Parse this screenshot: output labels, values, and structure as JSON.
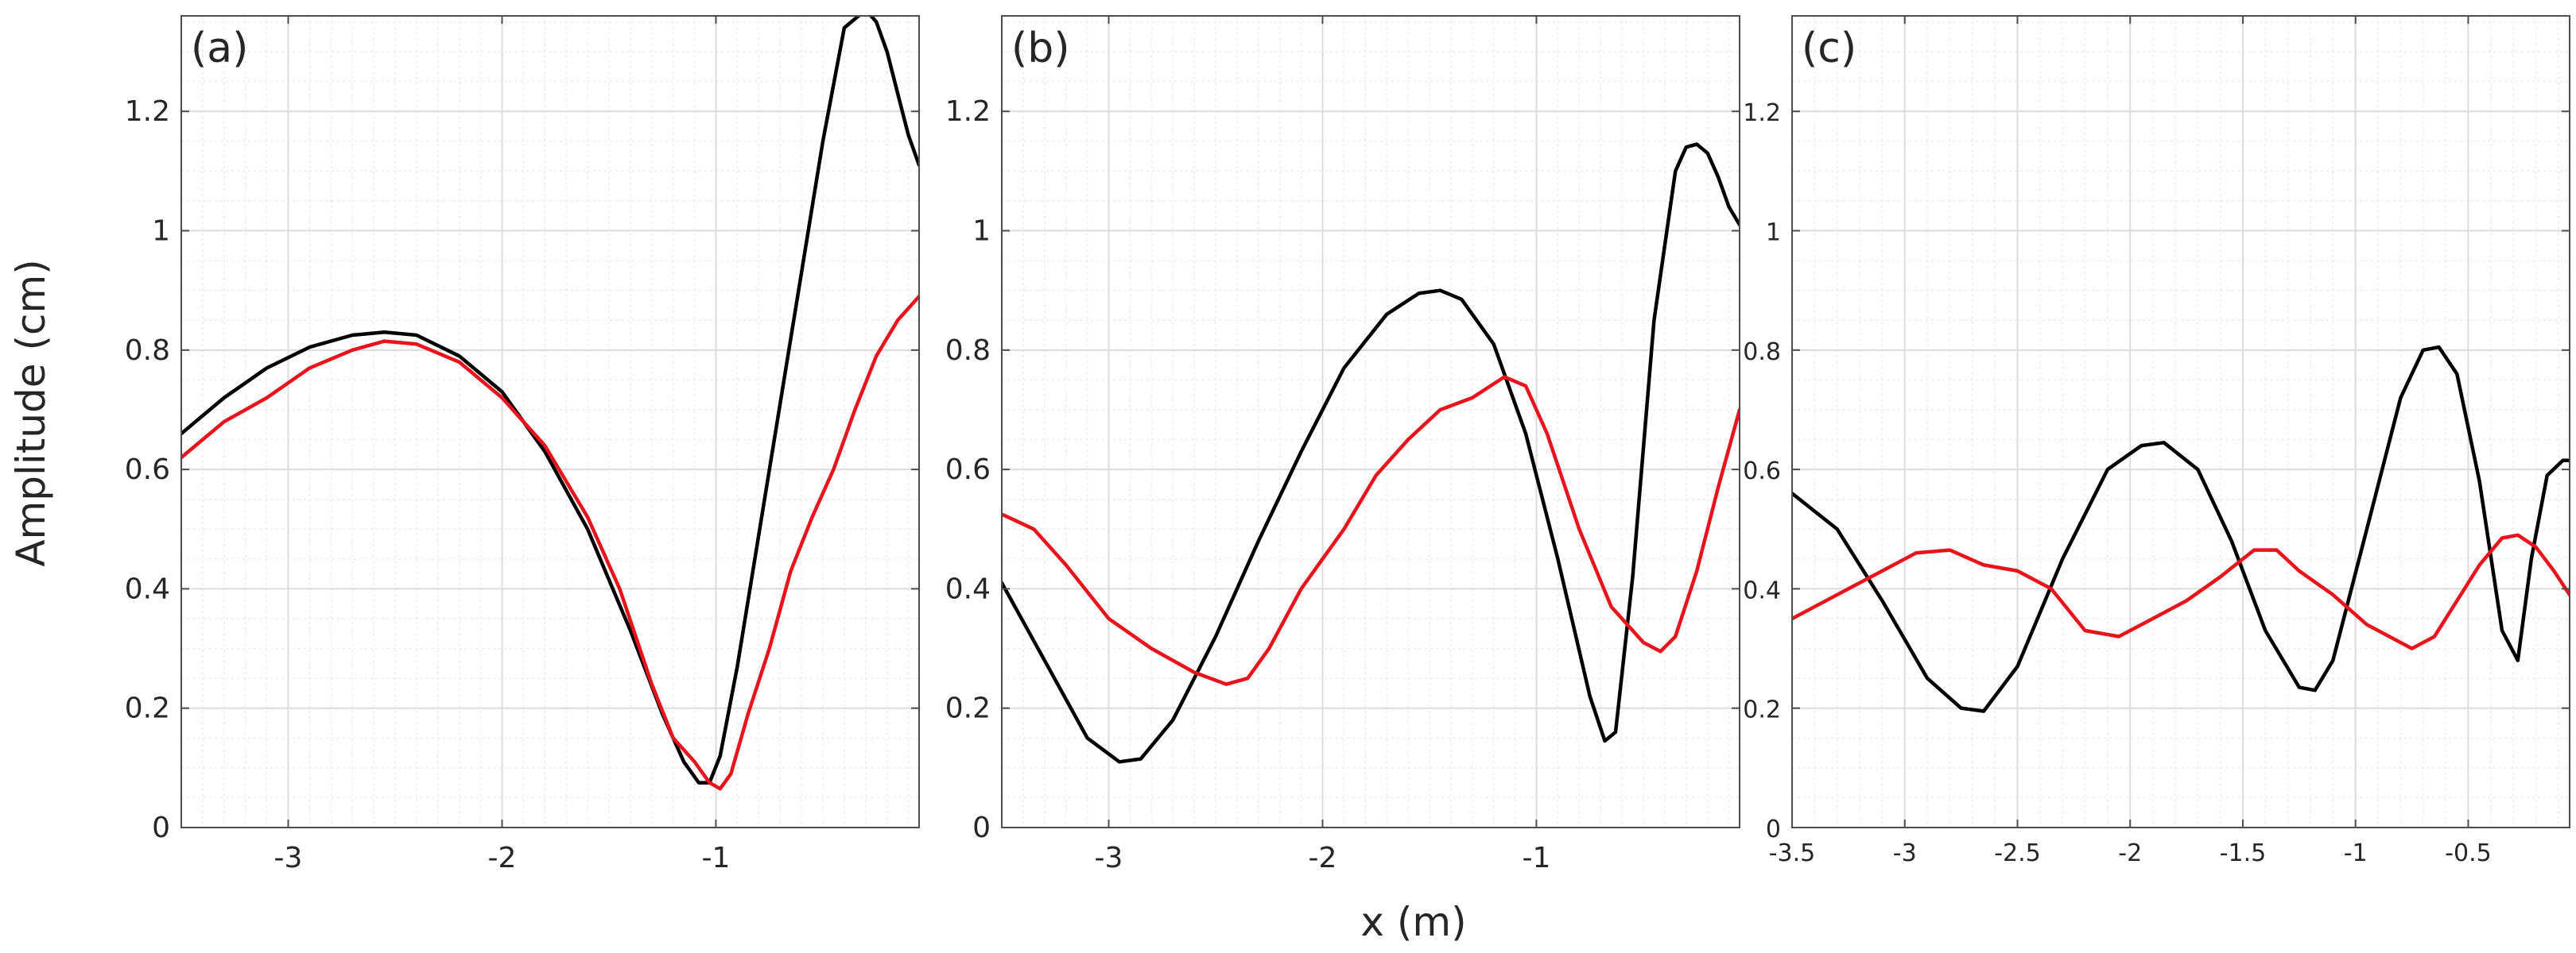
{
  "figure": {
    "ylabel": "Amplitude (cm)",
    "xlabel": "x (m)"
  },
  "colors": {
    "black_series": "#000000",
    "red_series": "#e8131b",
    "grid": "#e6e6e6",
    "axes": "#4d4d4d"
  },
  "chart_data": [
    {
      "type": "line",
      "panel_label": "(a)",
      "xlim": [
        -3.5,
        -0.05
      ],
      "ylim": [
        0,
        1.36
      ],
      "xticks": [
        -3,
        -2,
        -1
      ],
      "xtick_labels": [
        "-3",
        "-2",
        "-1"
      ],
      "yticks": [
        0,
        0.2,
        0.4,
        0.6,
        0.8,
        1,
        1.2
      ],
      "ytick_labels": [
        "0",
        "0.2",
        "0.4",
        "0.6",
        "0.8",
        "1",
        "1.2"
      ],
      "grid": true,
      "series": [
        {
          "color": "black",
          "x": [
            -3.5,
            -3.3,
            -3.1,
            -2.9,
            -2.7,
            -2.55,
            -2.4,
            -2.2,
            -2.0,
            -1.8,
            -1.6,
            -1.4,
            -1.25,
            -1.15,
            -1.08,
            -1.03,
            -0.98,
            -0.9,
            -0.8,
            -0.7,
            -0.6,
            -0.5,
            -0.4,
            -0.3,
            -0.25,
            -0.2,
            -0.15,
            -0.1,
            -0.05
          ],
          "y": [
            0.66,
            0.72,
            0.77,
            0.805,
            0.825,
            0.83,
            0.825,
            0.79,
            0.73,
            0.63,
            0.5,
            0.33,
            0.19,
            0.11,
            0.075,
            0.075,
            0.12,
            0.27,
            0.49,
            0.71,
            0.93,
            1.15,
            1.34,
            1.37,
            1.35,
            1.3,
            1.23,
            1.16,
            1.11
          ]
        },
        {
          "color": "red",
          "x": [
            -3.5,
            -3.3,
            -3.1,
            -2.9,
            -2.7,
            -2.55,
            -2.4,
            -2.2,
            -2.0,
            -1.8,
            -1.6,
            -1.45,
            -1.3,
            -1.2,
            -1.1,
            -1.03,
            -0.98,
            -0.93,
            -0.85,
            -0.75,
            -0.65,
            -0.55,
            -0.45,
            -0.35,
            -0.25,
            -0.15,
            -0.05
          ],
          "y": [
            0.62,
            0.68,
            0.72,
            0.77,
            0.8,
            0.815,
            0.81,
            0.78,
            0.72,
            0.64,
            0.52,
            0.4,
            0.24,
            0.15,
            0.11,
            0.075,
            0.065,
            0.09,
            0.19,
            0.3,
            0.43,
            0.52,
            0.6,
            0.7,
            0.79,
            0.85,
            0.89
          ]
        }
      ]
    },
    {
      "type": "line",
      "panel_label": "(b)",
      "xlim": [
        -3.5,
        -0.05
      ],
      "ylim": [
        0,
        1.36
      ],
      "xticks": [
        -3,
        -2,
        -1
      ],
      "xtick_labels": [
        "-3",
        "-2",
        "-1"
      ],
      "yticks": [
        0,
        0.2,
        0.4,
        0.6,
        0.8,
        1,
        1.2
      ],
      "ytick_labels": [
        "0",
        "0.2",
        "0.4",
        "0.6",
        "0.8",
        "1",
        "1.2"
      ],
      "grid": true,
      "series": [
        {
          "color": "black",
          "x": [
            -3.5,
            -3.3,
            -3.1,
            -2.95,
            -2.85,
            -2.7,
            -2.5,
            -2.3,
            -2.1,
            -1.9,
            -1.7,
            -1.55,
            -1.45,
            -1.35,
            -1.2,
            -1.05,
            -0.9,
            -0.75,
            -0.68,
            -0.63,
            -0.55,
            -0.45,
            -0.35,
            -0.3,
            -0.25,
            -0.2,
            -0.15,
            -0.1,
            -0.05
          ],
          "y": [
            0.41,
            0.28,
            0.15,
            0.11,
            0.115,
            0.18,
            0.32,
            0.48,
            0.63,
            0.77,
            0.86,
            0.895,
            0.9,
            0.885,
            0.81,
            0.66,
            0.45,
            0.22,
            0.145,
            0.16,
            0.42,
            0.85,
            1.1,
            1.14,
            1.145,
            1.13,
            1.09,
            1.04,
            1.01
          ]
        },
        {
          "color": "red",
          "x": [
            -3.5,
            -3.35,
            -3.2,
            -3.0,
            -2.8,
            -2.6,
            -2.45,
            -2.35,
            -2.25,
            -2.1,
            -1.9,
            -1.75,
            -1.6,
            -1.45,
            -1.3,
            -1.15,
            -1.05,
            -0.95,
            -0.8,
            -0.65,
            -0.5,
            -0.42,
            -0.35,
            -0.25,
            -0.15,
            -0.05
          ],
          "y": [
            0.525,
            0.5,
            0.44,
            0.35,
            0.3,
            0.26,
            0.24,
            0.25,
            0.3,
            0.4,
            0.5,
            0.59,
            0.65,
            0.7,
            0.72,
            0.755,
            0.74,
            0.66,
            0.5,
            0.37,
            0.31,
            0.295,
            0.32,
            0.43,
            0.57,
            0.7
          ]
        }
      ]
    },
    {
      "type": "line",
      "panel_label": "(c)",
      "xlim": [
        -3.5,
        -0.05
      ],
      "ylim": [
        0,
        1.36
      ],
      "xticks": [
        -3.5,
        -3,
        -2.5,
        -2,
        -1.5,
        -1,
        -0.5
      ],
      "xtick_labels": [
        "-3.5",
        "-3",
        "-2.5",
        "-2",
        "-1.5",
        "-1",
        "-0.5"
      ],
      "yticks": [
        0,
        0.2,
        0.4,
        0.6,
        0.8,
        1,
        1.2
      ],
      "ytick_labels": [
        "0",
        "0.2",
        "0.4",
        "0.6",
        "0.8",
        "1",
        "1.2"
      ],
      "grid": true,
      "series": [
        {
          "color": "black",
          "x": [
            -3.5,
            -3.3,
            -3.1,
            -2.9,
            -2.75,
            -2.65,
            -2.5,
            -2.3,
            -2.1,
            -1.95,
            -1.85,
            -1.7,
            -1.55,
            -1.4,
            -1.25,
            -1.18,
            -1.1,
            -0.95,
            -0.8,
            -0.7,
            -0.63,
            -0.55,
            -0.45,
            -0.35,
            -0.28,
            -0.22,
            -0.15,
            -0.08,
            -0.05
          ],
          "y": [
            0.56,
            0.5,
            0.38,
            0.25,
            0.2,
            0.195,
            0.27,
            0.45,
            0.6,
            0.64,
            0.645,
            0.6,
            0.48,
            0.33,
            0.235,
            0.23,
            0.28,
            0.5,
            0.72,
            0.8,
            0.805,
            0.76,
            0.58,
            0.33,
            0.28,
            0.45,
            0.59,
            0.615,
            0.615
          ]
        },
        {
          "color": "red",
          "x": [
            -3.5,
            -3.3,
            -3.1,
            -2.95,
            -2.8,
            -2.65,
            -2.5,
            -2.35,
            -2.2,
            -2.05,
            -1.9,
            -1.75,
            -1.6,
            -1.45,
            -1.35,
            -1.25,
            -1.1,
            -0.95,
            -0.85,
            -0.75,
            -0.65,
            -0.55,
            -0.45,
            -0.35,
            -0.28,
            -0.2,
            -0.12,
            -0.05
          ],
          "y": [
            0.35,
            0.39,
            0.43,
            0.46,
            0.465,
            0.44,
            0.43,
            0.4,
            0.33,
            0.32,
            0.35,
            0.38,
            0.42,
            0.465,
            0.465,
            0.43,
            0.39,
            0.34,
            0.32,
            0.3,
            0.32,
            0.38,
            0.44,
            0.485,
            0.49,
            0.47,
            0.43,
            0.39
          ]
        }
      ]
    }
  ]
}
